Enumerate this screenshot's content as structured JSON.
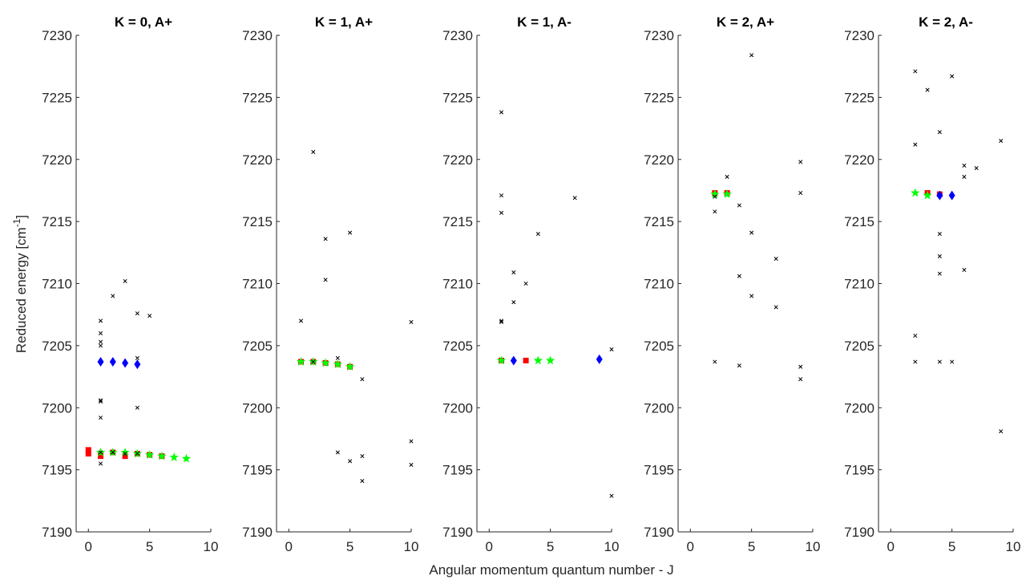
{
  "chart_data": {
    "type": "scatter",
    "xlabel": "Angular momentum quantum number - J",
    "ylabel": "Reduced energy [cm",
    "ylabel_sup": "-1",
    "ylabel_end": "]",
    "xlim": [
      -1,
      10
    ],
    "ylim": [
      7190,
      7230
    ],
    "xticks": [
      0,
      5,
      10
    ],
    "yticks": [
      7190,
      7195,
      7200,
      7205,
      7210,
      7215,
      7220,
      7225,
      7230
    ],
    "colors": {
      "blue_diamond": "#0000ff",
      "red_square": "#ff0000",
      "green_star": "#00ff00",
      "black_cross": "#000000"
    },
    "panels": [
      {
        "title": "K = 0, A+",
        "x_tick_labels": [
          "0",
          "5",
          "10"
        ],
        "black_cross": [
          [
            1,
            7207
          ],
          [
            1,
            7206
          ],
          [
            1,
            7205.3
          ],
          [
            1,
            7205
          ],
          [
            1,
            7200.6
          ],
          [
            1,
            7200.5
          ],
          [
            1,
            7199.2
          ],
          [
            1,
            7195.5
          ],
          [
            1,
            7196.4
          ],
          [
            2,
            7209
          ],
          [
            3,
            7210.2
          ],
          [
            4,
            7207.6
          ],
          [
            4,
            7204
          ],
          [
            4,
            7200
          ],
          [
            4,
            7196.3
          ],
          [
            5,
            7207.4
          ],
          [
            2,
            7196.4
          ],
          [
            3,
            7196.3
          ]
        ],
        "blue_diamond": [
          [
            1,
            7203.7
          ],
          [
            2,
            7203.7
          ],
          [
            3,
            7203.6
          ],
          [
            4,
            7203.5
          ]
        ],
        "red_square": [
          [
            0,
            7196.6
          ],
          [
            0,
            7196.3
          ],
          [
            1,
            7196.3
          ],
          [
            1,
            7196.1
          ],
          [
            2,
            7196.4
          ],
          [
            3,
            7196.1
          ],
          [
            4,
            7196.3
          ],
          [
            5,
            7196.2
          ],
          [
            6,
            7196.1
          ]
        ],
        "green_star": [
          [
            1,
            7196.4
          ],
          [
            2,
            7196.4
          ],
          [
            3,
            7196.4
          ],
          [
            4,
            7196.3
          ],
          [
            5,
            7196.2
          ],
          [
            6,
            7196.1
          ],
          [
            7,
            7196
          ],
          [
            8,
            7195.9
          ]
        ]
      },
      {
        "title": "K = 1, A+",
        "x_tick_labels": [
          "0",
          "5",
          "10"
        ],
        "black_cross": [
          [
            1,
            7207
          ],
          [
            2,
            7220.6
          ],
          [
            2,
            7203.7
          ],
          [
            3,
            7213.6
          ],
          [
            3,
            7210.3
          ],
          [
            4,
            7204
          ],
          [
            4,
            7196.4
          ],
          [
            5,
            7214.1
          ],
          [
            5,
            7195.7
          ],
          [
            6,
            7202.3
          ],
          [
            6,
            7196.1
          ],
          [
            6,
            7194.1
          ],
          [
            10,
            7206.9
          ],
          [
            10,
            7197.3
          ],
          [
            10,
            7195.4
          ]
        ],
        "blue_diamond": [],
        "red_square": [
          [
            1,
            7203.7
          ],
          [
            2,
            7203.7
          ],
          [
            3,
            7203.6
          ],
          [
            4,
            7203.5
          ],
          [
            5,
            7203.3
          ]
        ],
        "green_star": [
          [
            1,
            7203.7
          ],
          [
            2,
            7203.7
          ],
          [
            3,
            7203.6
          ],
          [
            4,
            7203.5
          ],
          [
            5,
            7203.3
          ]
        ]
      },
      {
        "title": "K = 1, A-",
        "x_tick_labels": [
          "0",
          "5",
          "10"
        ],
        "black_cross": [
          [
            1,
            7223.8
          ],
          [
            1,
            7217.1
          ],
          [
            1,
            7215.7
          ],
          [
            1,
            7207
          ],
          [
            1,
            7206.9
          ],
          [
            2,
            7210.9
          ],
          [
            2,
            7208.5
          ],
          [
            3,
            7210
          ],
          [
            4,
            7214
          ],
          [
            7,
            7216.9
          ],
          [
            10,
            7204.7
          ],
          [
            10,
            7192.9
          ]
        ],
        "blue_diamond": [
          [
            2,
            7203.8
          ],
          [
            9,
            7203.9
          ]
        ],
        "red_square": [
          [
            1,
            7203.8
          ],
          [
            3,
            7203.8
          ]
        ],
        "green_star": [
          [
            1,
            7203.8
          ],
          [
            4,
            7203.8
          ],
          [
            5,
            7203.8
          ]
        ]
      },
      {
        "title": "K = 2, A+",
        "x_tick_labels": [
          "0",
          "5",
          "10"
        ],
        "black_cross": [
          [
            2,
            7217
          ],
          [
            2,
            7215.8
          ],
          [
            2,
            7203.7
          ],
          [
            3,
            7218.6
          ],
          [
            4,
            7216.3
          ],
          [
            4,
            7210.6
          ],
          [
            4,
            7203.4
          ],
          [
            5,
            7228.4
          ],
          [
            5,
            7214.1
          ],
          [
            5,
            7209
          ],
          [
            7,
            7212
          ],
          [
            7,
            7208.1
          ],
          [
            9,
            7219.8
          ],
          [
            9,
            7217.3
          ],
          [
            9,
            7203.3
          ],
          [
            9,
            7202.3
          ]
        ],
        "blue_diamond": [],
        "red_square": [
          [
            2,
            7217.3
          ],
          [
            3,
            7217.3
          ]
        ],
        "green_star": [
          [
            2,
            7217.2
          ],
          [
            3,
            7217.2
          ]
        ]
      },
      {
        "title": "K = 2, A-",
        "x_tick_labels": [
          "0",
          "5",
          "10"
        ],
        "black_cross": [
          [
            2,
            7227.1
          ],
          [
            2,
            7221.2
          ],
          [
            2,
            7205.8
          ],
          [
            2,
            7203.7
          ],
          [
            3,
            7225.6
          ],
          [
            4,
            7222.2
          ],
          [
            4,
            7214
          ],
          [
            4,
            7212.2
          ],
          [
            4,
            7210.8
          ],
          [
            4,
            7203.7
          ],
          [
            5,
            7226.7
          ],
          [
            5,
            7203.7
          ],
          [
            6,
            7219.5
          ],
          [
            6,
            7218.6
          ],
          [
            6,
            7211.1
          ],
          [
            7,
            7219.3
          ],
          [
            9,
            7221.5
          ],
          [
            9,
            7198.1
          ]
        ],
        "blue_diamond": [
          [
            4,
            7217.1
          ],
          [
            5,
            7217.1
          ]
        ],
        "red_square": [
          [
            3,
            7217.3
          ],
          [
            4,
            7217.2
          ]
        ],
        "green_star": [
          [
            2,
            7217.3
          ],
          [
            3,
            7217.1
          ]
        ]
      }
    ]
  }
}
